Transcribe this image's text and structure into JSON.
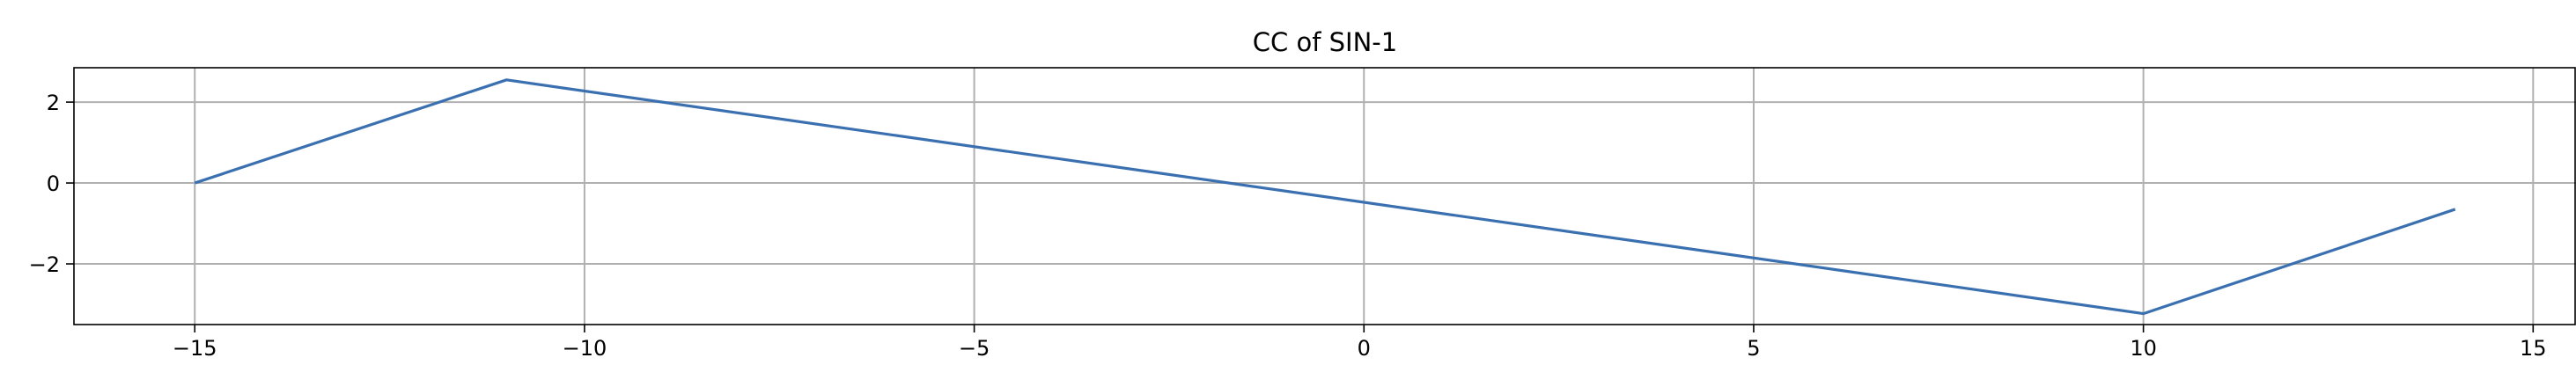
{
  "chart_data": {
    "type": "line",
    "title": "CC of SIN-1",
    "xlabel": "",
    "ylabel": "",
    "xlim": [
      -16.55,
      15.55
    ],
    "ylim": [
      -3.5,
      2.85
    ],
    "xticks": [
      -15,
      -10,
      -5,
      0,
      5,
      10,
      15
    ],
    "xtick_labels": [
      "−15",
      "−10",
      "−5",
      "0",
      "5",
      "10",
      "15"
    ],
    "yticks": [
      -2,
      0,
      2
    ],
    "ytick_labels": [
      "−2",
      "0",
      "2"
    ],
    "grid": true,
    "line_color": "#3a70b0",
    "series": [
      {
        "x": [
          -15,
          -11,
          10,
          14
        ],
        "values": [
          0.0,
          2.55,
          -3.23,
          -0.65
        ]
      }
    ]
  }
}
